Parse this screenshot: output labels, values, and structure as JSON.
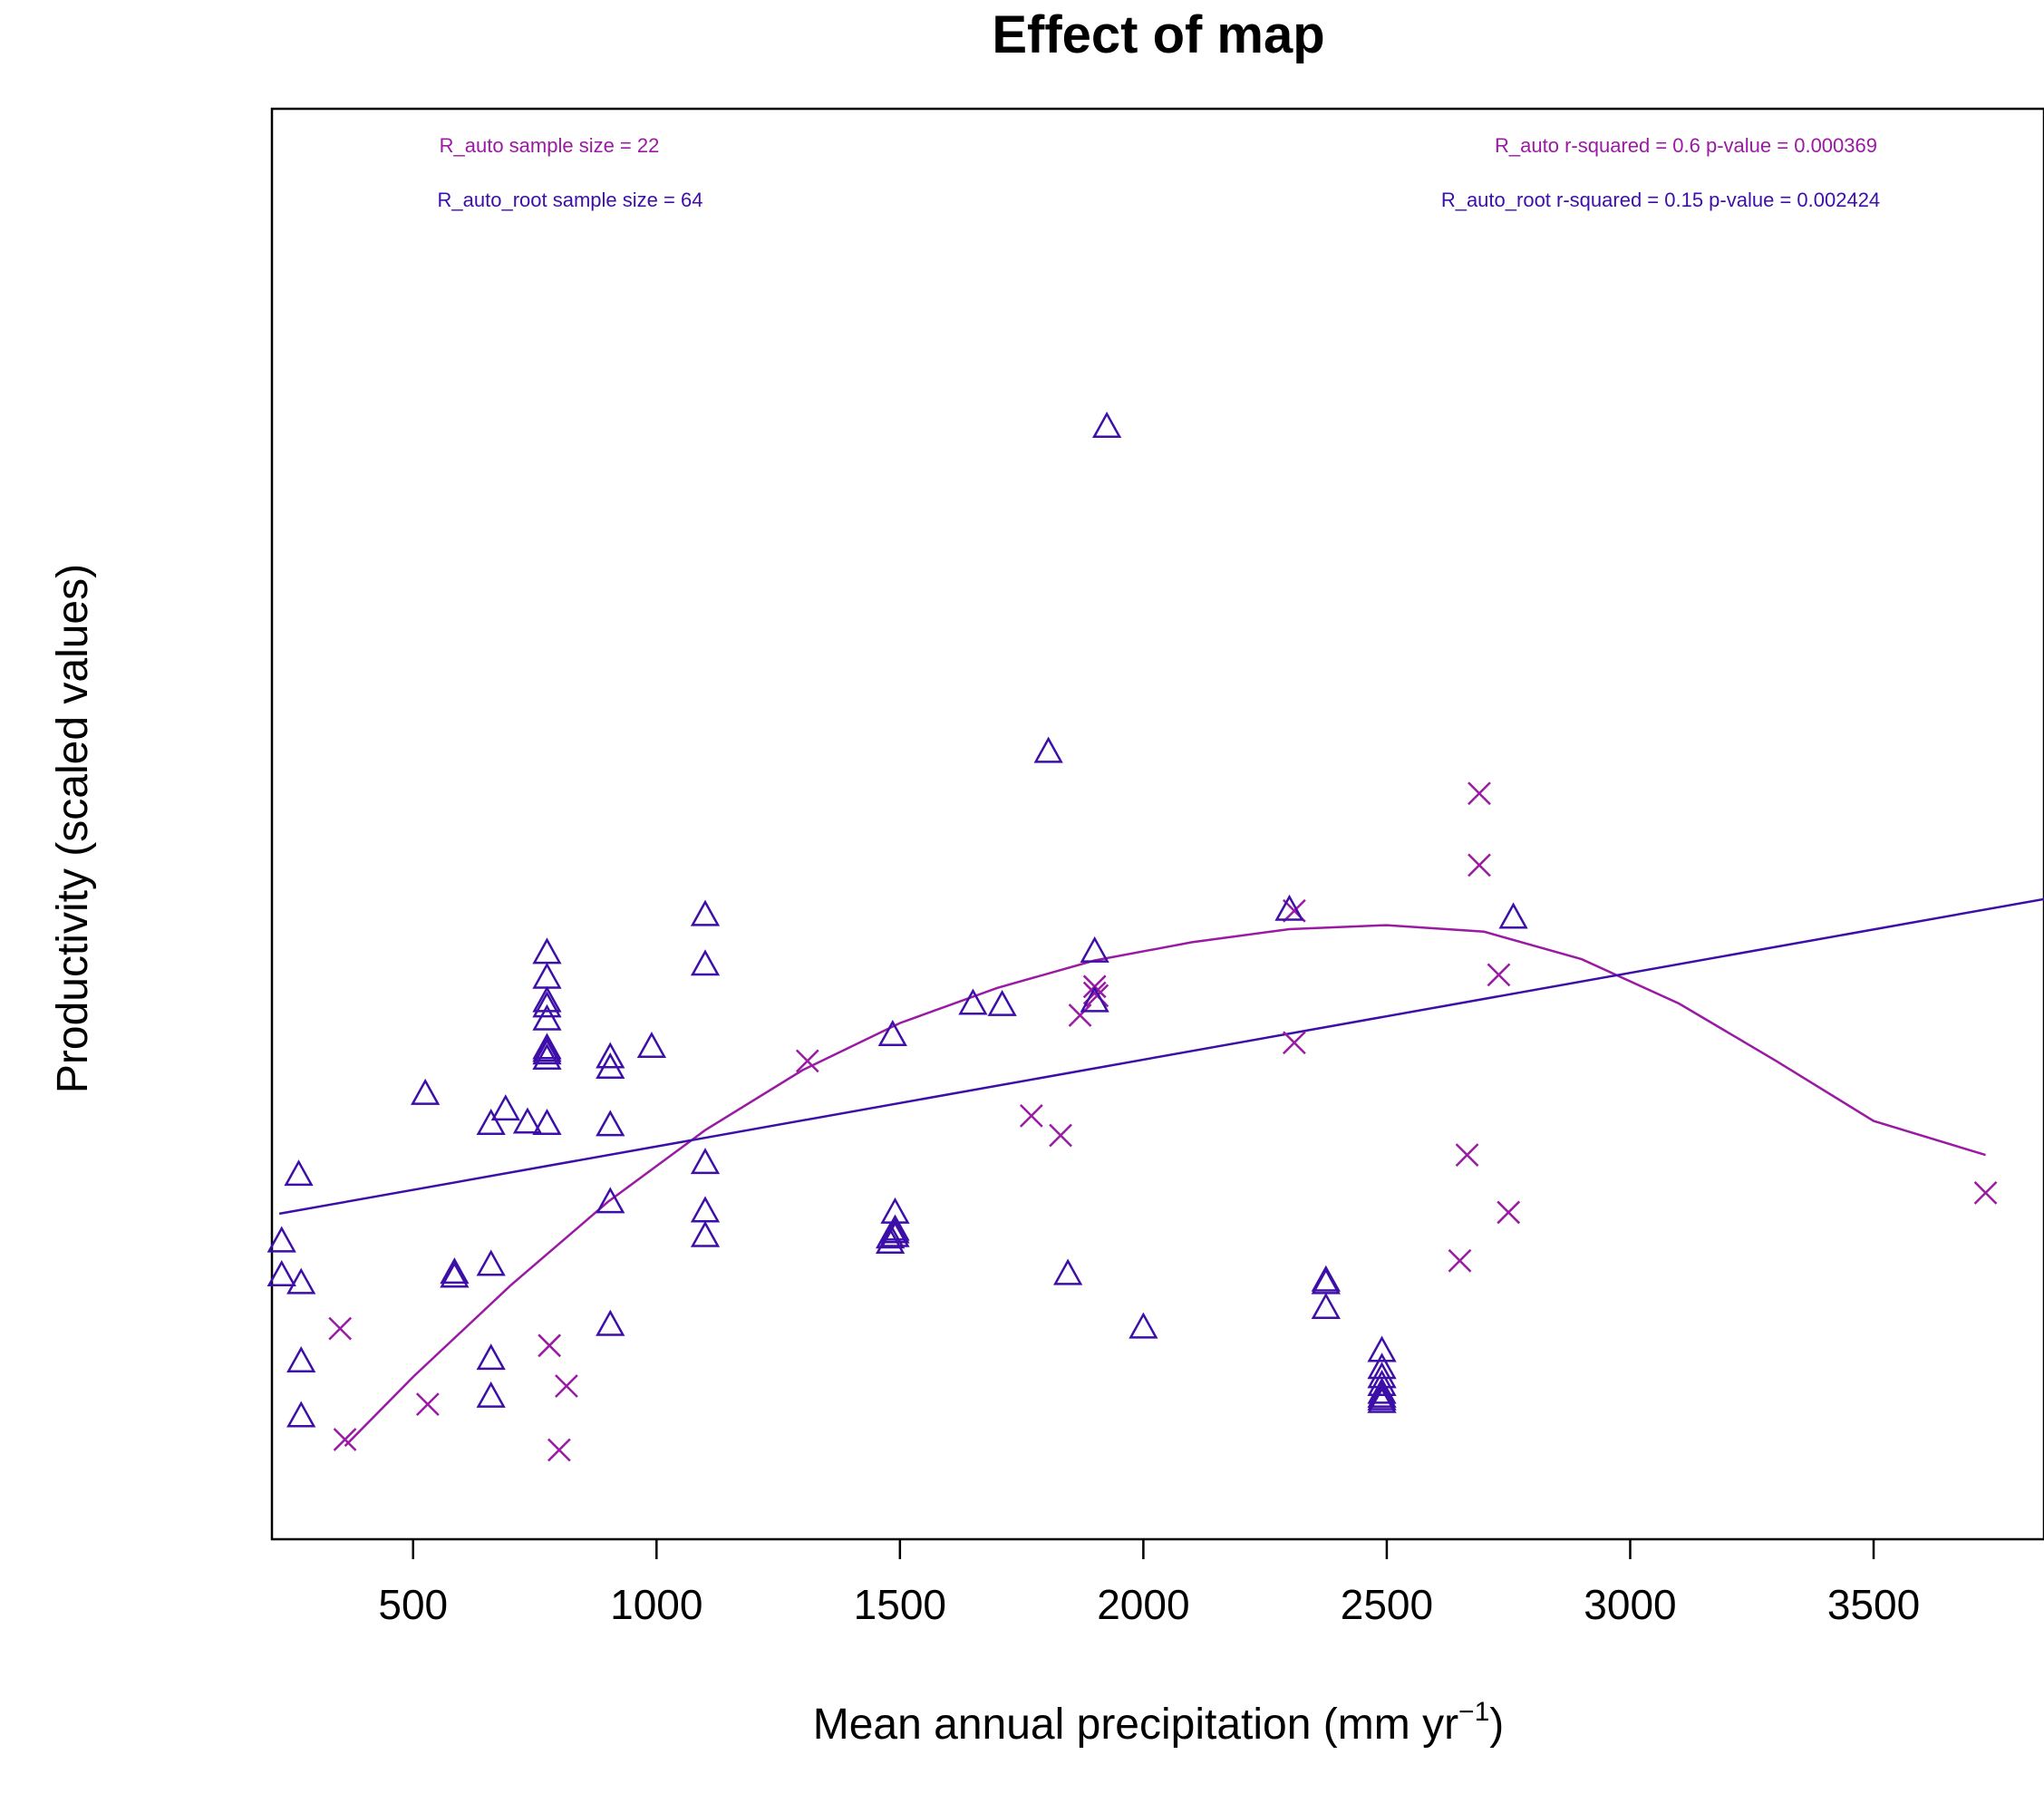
{
  "chart_data": {
    "type": "scatter",
    "title": "Effect of map",
    "xlabel": "Mean annual precipitation (mm yr",
    "xlabel_sup": "−1",
    "xlabel_end": ")",
    "ylabel": "Productivity (scaled values)",
    "xlim": [
      210,
      3850
    ],
    "ylim": [
      0,
      100
    ],
    "x_ticks": [
      500,
      1000,
      1500,
      2000,
      2500,
      3000,
      3500
    ],
    "grid": false,
    "colors": {
      "R_auto": "#9a1aa3",
      "R_auto_root": "#3d0fa8"
    },
    "annotations": {
      "auto_sample": "R_auto sample size = 22",
      "root_sample": "R_auto_root sample size = 64",
      "auto_stats": "R_auto r-squared =  0.6 p-value =  0.000369",
      "root_stats": "R_auto_root r-squared =  0.15 p-value =  0.002424"
    },
    "series": [
      {
        "key": "R_auto",
        "marker": "x",
        "points": [
          [
            350,
            13.5
          ],
          [
            360,
            5.0
          ],
          [
            530,
            7.7
          ],
          [
            780,
            12.2
          ],
          [
            800,
            4.2
          ],
          [
            815,
            9.1
          ],
          [
            1310,
            34.0
          ],
          [
            1770,
            29.8
          ],
          [
            1830,
            28.3
          ],
          [
            1870,
            37.5
          ],
          [
            1900,
            39.2
          ],
          [
            1900,
            39.7
          ],
          [
            1905,
            39.0
          ],
          [
            2310,
            45.5
          ],
          [
            2310,
            35.4
          ],
          [
            2650,
            18.7
          ],
          [
            2665,
            26.8
          ],
          [
            2690,
            54.5
          ],
          [
            2690,
            49.0
          ],
          [
            2730,
            40.6
          ],
          [
            2750,
            22.4
          ],
          [
            3730,
            23.9
          ]
        ],
        "fit": [
          [
            360,
            4.5
          ],
          [
            500,
            9.8
          ],
          [
            700,
            16.8
          ],
          [
            900,
            23.2
          ],
          [
            1100,
            28.7
          ],
          [
            1300,
            33.3
          ],
          [
            1500,
            36.9
          ],
          [
            1700,
            39.6
          ],
          [
            1900,
            41.7
          ],
          [
            2100,
            43.1
          ],
          [
            2300,
            44.1
          ],
          [
            2500,
            44.4
          ],
          [
            2700,
            43.9
          ],
          [
            2900,
            41.8
          ],
          [
            3100,
            38.4
          ],
          [
            3300,
            34.0
          ],
          [
            3500,
            29.4
          ],
          [
            3730,
            26.8
          ]
        ]
      },
      {
        "key": "R_auto_root",
        "marker": "triangle",
        "points": [
          [
            230,
            20.2
          ],
          [
            230,
            17.6
          ],
          [
            265,
            25.3
          ],
          [
            270,
            17.0
          ],
          [
            270,
            11.0
          ],
          [
            270,
            6.8
          ],
          [
            525,
            31.5
          ],
          [
            585,
            17.8
          ],
          [
            585,
            17.5
          ],
          [
            660,
            18.4
          ],
          [
            660,
            11.2
          ],
          [
            660,
            8.3
          ],
          [
            660,
            29.2
          ],
          [
            690,
            30.3
          ],
          [
            735,
            29.3
          ],
          [
            775,
            42.3
          ],
          [
            775,
            40.4
          ],
          [
            775,
            38.6
          ],
          [
            775,
            38.2
          ],
          [
            775,
            37.2
          ],
          [
            775,
            35.0
          ],
          [
            775,
            34.6
          ],
          [
            775,
            34.2
          ],
          [
            775,
            29.2
          ],
          [
            905,
            34.3
          ],
          [
            905,
            33.5
          ],
          [
            905,
            29.1
          ],
          [
            905,
            23.2
          ],
          [
            905,
            13.8
          ],
          [
            990,
            35.1
          ],
          [
            1100,
            45.2
          ],
          [
            1100,
            41.4
          ],
          [
            1100,
            26.2
          ],
          [
            1100,
            22.5
          ],
          [
            1100,
            20.6
          ],
          [
            1480,
            20.5
          ],
          [
            1480,
            20.1
          ],
          [
            1490,
            20.6
          ],
          [
            1490,
            21.1
          ],
          [
            1490,
            22.4
          ],
          [
            1485,
            36.0
          ],
          [
            1650,
            38.4
          ],
          [
            1710,
            38.3
          ],
          [
            1805,
            57.7
          ],
          [
            1845,
            17.7
          ],
          [
            1900,
            42.4
          ],
          [
            1900,
            38.6
          ],
          [
            1925,
            82.6
          ],
          [
            2000,
            13.6
          ],
          [
            2300,
            45.6
          ],
          [
            2375,
            17.2
          ],
          [
            2375,
            17.0
          ],
          [
            2375,
            15.1
          ],
          [
            2490,
            11.8
          ],
          [
            2490,
            10.5
          ],
          [
            2490,
            9.2
          ],
          [
            2490,
            8.3
          ],
          [
            2490,
            8.1
          ],
          [
            2490,
            7.9
          ],
          [
            2760,
            45.0
          ],
          [
            2490,
            8.6
          ],
          [
            2490,
            9.8
          ],
          [
            1490,
            20.9
          ],
          [
            775,
            34.8
          ]
        ],
        "fit": [
          [
            225,
            22.3
          ],
          [
            3850,
            46.4
          ]
        ]
      }
    ]
  }
}
